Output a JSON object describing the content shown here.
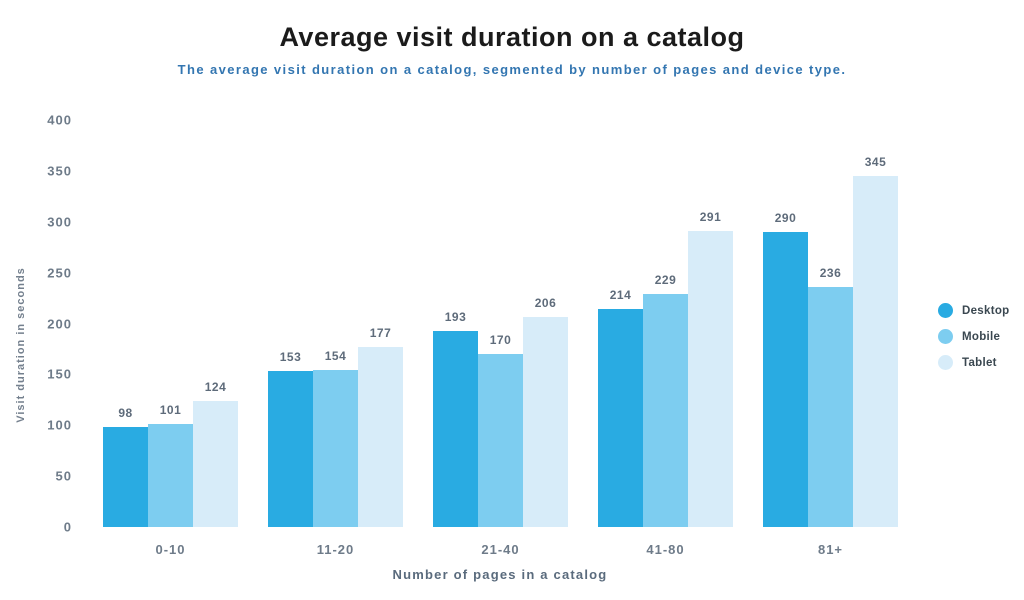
{
  "chart_data": {
    "type": "bar",
    "title": "Average visit duration on a catalog",
    "subtitle": "The average visit duration on a catalog, segmented by number of pages and device type.",
    "xlabel": "Number of pages in a catalog",
    "ylabel": "Visit duration in seconds",
    "categories": [
      "0-10",
      "11-20",
      "21-40",
      "41-80",
      "81+"
    ],
    "series": [
      {
        "name": "Desktop",
        "color": "#29ABE2",
        "values": [
          98,
          153,
          193,
          214,
          290
        ]
      },
      {
        "name": "Mobile",
        "color": "#7DCDF0",
        "values": [
          101,
          154,
          170,
          229,
          236
        ]
      },
      {
        "name": "Tablet",
        "color": "#D7ECF9",
        "values": [
          124,
          177,
          206,
          291,
          345
        ]
      }
    ],
    "ylim": [
      0,
      400
    ],
    "yticks": [
      0,
      50,
      100,
      150,
      200,
      250,
      300,
      350,
      400
    ],
    "grid": false,
    "legend_position": "right",
    "colors": {
      "title_text": "#1b1b1b",
      "subtitle_text": "#3376B1",
      "axis_text": "#6E7B89",
      "value_label_text": "#5E6B7A",
      "background": "#ffffff"
    }
  }
}
